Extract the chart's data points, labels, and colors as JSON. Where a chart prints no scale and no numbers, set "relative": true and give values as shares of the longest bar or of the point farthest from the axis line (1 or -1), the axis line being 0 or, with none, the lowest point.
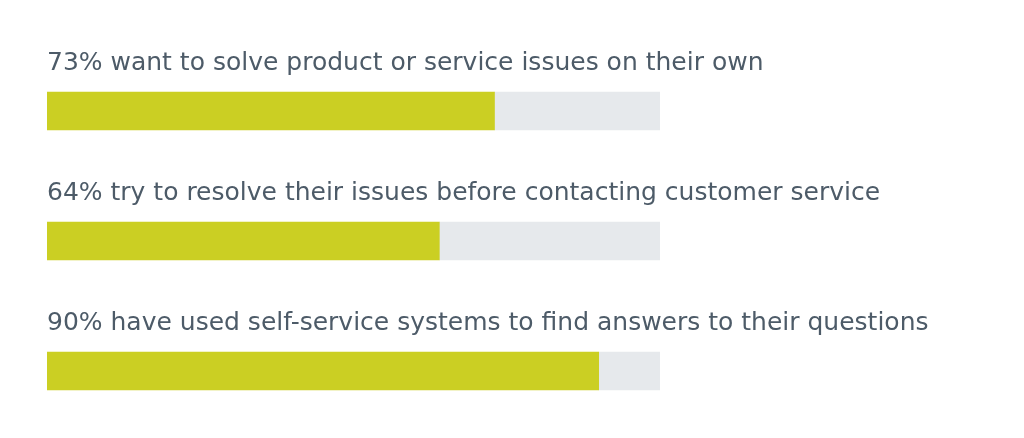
{
  "chart_data": {
    "type": "bar",
    "orientation": "horizontal",
    "stacked": true,
    "relative": true,
    "categories": [
      "73% want to solve product or service issues on their own",
      "64% try to resolve their issues before contacting customer service",
      "90% have used self-service systems to find answers to their questions"
    ],
    "series": [
      {
        "color": "#cbcf23",
        "values": [
          0.73,
          0.64,
          0.9
        ]
      },
      {
        "color": "#e6e9ec",
        "values": [
          0.27,
          0.36,
          0.1
        ]
      }
    ],
    "tick_labels": "y"
  }
}
